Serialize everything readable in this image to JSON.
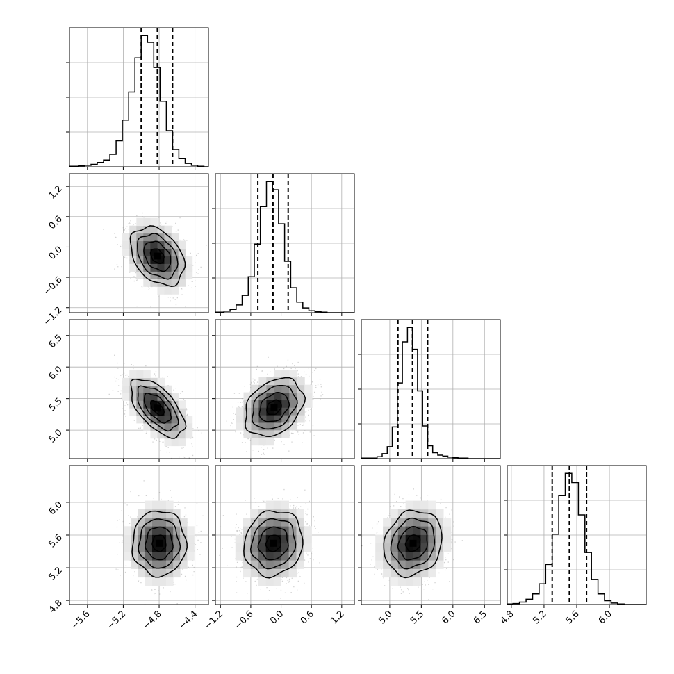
{
  "chart_data": {
    "type": "corner",
    "parameters": 4,
    "axis_ranges": [
      [
        -5.8,
        -4.25
      ],
      [
        -1.3,
        1.45
      ],
      [
        4.55,
        6.75
      ],
      [
        4.75,
        6.45
      ]
    ],
    "ticks": [
      [
        "−5.6",
        "−5.2",
        "−4.8",
        "−4.4"
      ],
      [
        "−1.2",
        "−0.6",
        "0.0",
        "0.6",
        "1.2"
      ],
      [
        "5.0",
        "5.5",
        "6.0",
        "6.5"
      ],
      [
        "4.8",
        "5.2",
        "5.6",
        "6.0"
      ]
    ],
    "tick_values": [
      [
        -5.6,
        -5.2,
        -4.8,
        -4.4
      ],
      [
        -1.2,
        -0.6,
        0.0,
        0.6,
        1.2
      ],
      [
        5.0,
        5.5,
        6.0,
        6.5
      ],
      [
        4.8,
        5.2,
        5.6,
        6.0
      ]
    ],
    "marginals": [
      {
        "parameter": 1,
        "bin_edges": [
          -5.8,
          -5.7,
          -5.63,
          -5.56,
          -5.49,
          -5.42,
          -5.35,
          -5.28,
          -5.21,
          -5.14,
          -5.07,
          -5.0,
          -4.93,
          -4.86,
          -4.79,
          -4.72,
          -4.65,
          -4.58,
          -4.51,
          -4.44,
          -4.37,
          -4.3,
          -4.25
        ],
        "counts": [
          1,
          2,
          3,
          5,
          9,
          14,
          26,
          54,
          97,
          155,
          226,
          272,
          258,
          206,
          136,
          75,
          36,
          17,
          7,
          3,
          1,
          0
        ],
        "quantiles": [
          -5.0,
          -4.82,
          -4.65
        ]
      },
      {
        "parameter": 2,
        "bin_edges": [
          -1.3,
          -1.13,
          -1.01,
          -0.89,
          -0.77,
          -0.65,
          -0.53,
          -0.41,
          -0.29,
          -0.17,
          -0.05,
          0.07,
          0.19,
          0.31,
          0.43,
          0.55,
          0.67,
          0.79,
          0.91,
          1.03,
          1.15,
          1.45
        ],
        "counts": [
          1,
          3,
          7,
          16,
          36,
          75,
          143,
          221,
          273,
          256,
          185,
          107,
          52,
          22,
          10,
          4,
          2,
          1,
          0,
          0,
          0
        ],
        "quantiles": [
          -0.46,
          -0.16,
          0.14
        ]
      },
      {
        "parameter": 3,
        "bin_edges": [
          4.55,
          4.8,
          4.88,
          4.96,
          5.04,
          5.12,
          5.2,
          5.28,
          5.36,
          5.44,
          5.52,
          5.6,
          5.68,
          5.76,
          5.84,
          5.92,
          6.0,
          6.08,
          6.16,
          6.24,
          6.32,
          6.4,
          6.75
        ],
        "counts": [
          1,
          4,
          10,
          24,
          64,
          153,
          236,
          265,
          221,
          137,
          66,
          26,
          12,
          7,
          5,
          3,
          2,
          1,
          1,
          0,
          0,
          0
        ],
        "quantiles": [
          5.13,
          5.36,
          5.6
        ]
      },
      {
        "parameter": 4,
        "bin_edges": [
          4.75,
          4.82,
          4.9,
          4.98,
          5.06,
          5.14,
          5.22,
          5.3,
          5.38,
          5.46,
          5.54,
          5.62,
          5.7,
          5.78,
          5.86,
          5.94,
          6.02,
          6.1,
          6.18,
          6.26,
          6.34,
          6.45
        ],
        "counts": [
          1,
          2,
          5,
          11,
          22,
          43,
          83,
          146,
          226,
          272,
          253,
          186,
          108,
          52,
          22,
          8,
          3,
          1,
          0,
          0,
          0
        ],
        "quantiles": [
          5.3,
          5.51,
          5.72
        ]
      }
    ],
    "joint_distributions": [
      {
        "x_parameter": 1,
        "y_parameter": 2,
        "mean": [
          -4.82,
          -0.18
        ],
        "sd": [
          0.15,
          0.29
        ],
        "rho": -0.35
      },
      {
        "x_parameter": 1,
        "y_parameter": 3,
        "mean": [
          -4.82,
          5.35
        ],
        "sd": [
          0.15,
          0.23
        ],
        "rho": -0.6
      },
      {
        "x_parameter": 2,
        "y_parameter": 3,
        "mean": [
          -0.14,
          5.36
        ],
        "sd": [
          0.29,
          0.23
        ],
        "rho": 0.3
      },
      {
        "x_parameter": 1,
        "y_parameter": 4,
        "mean": [
          -4.8,
          5.5
        ],
        "sd": [
          0.15,
          0.2
        ],
        "rho": 0.0
      },
      {
        "x_parameter": 2,
        "y_parameter": 4,
        "mean": [
          -0.15,
          5.5
        ],
        "sd": [
          0.29,
          0.2
        ],
        "rho": 0.1
      },
      {
        "x_parameter": 3,
        "y_parameter": 4,
        "mean": [
          5.37,
          5.5
        ],
        "sd": [
          0.23,
          0.2
        ],
        "rho": 0.15
      }
    ],
    "grid": true,
    "contour_levels_sigma": [
      0.5,
      1.0,
      1.5,
      2.0
    ],
    "colors": {
      "line": "#000000",
      "grid": "#b0b0b0",
      "points": "#9a9a9a",
      "density_max": "#000000"
    }
  }
}
